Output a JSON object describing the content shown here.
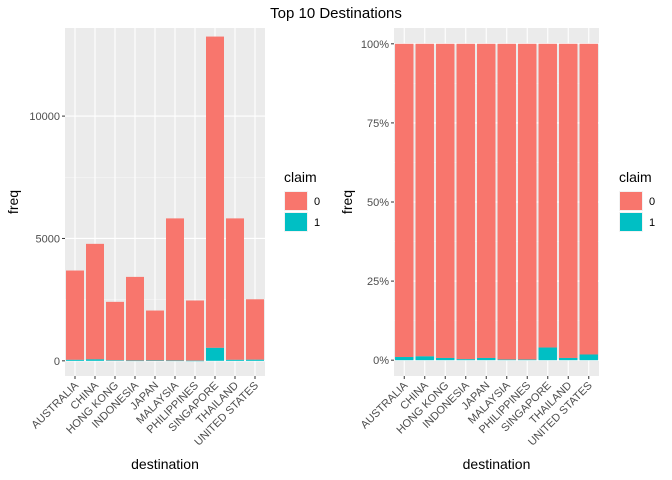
{
  "title": "Top 10 Destinations",
  "colors": {
    "0": "#F8766D",
    "1": "#00BFC4",
    "panel": "#EBEBEB",
    "grid_major": "#FFFFFF",
    "grid_minor": "#F5F5F5"
  },
  "chart_data": [
    {
      "type": "bar",
      "stacked": true,
      "categories": [
        "AUSTRALIA",
        "CHINA",
        "HONG KONG",
        "INDONESIA",
        "JAPAN",
        "MALAYSIA",
        "PHILIPPINES",
        "SINGAPORE",
        "THAILAND",
        "UNITED STATES"
      ],
      "series": [
        {
          "name": "0",
          "values": [
            3650,
            4720,
            2390,
            3420,
            2040,
            5810,
            2460,
            12720,
            5780,
            2470
          ]
        },
        {
          "name": "1",
          "values": [
            40,
            60,
            20,
            10,
            15,
            10,
            5,
            530,
            40,
            45
          ]
        }
      ],
      "xlabel": "destination",
      "ylabel": "freq",
      "ylim": [
        -620,
        13600
      ],
      "yticks": [
        0,
        5000,
        10000
      ],
      "ytick_labels": [
        "0",
        "5000",
        "10000"
      ],
      "grid": true,
      "legend": {
        "title": "claim",
        "position": "right",
        "entries": [
          "0",
          "1"
        ]
      }
    },
    {
      "type": "bar",
      "stacked": true,
      "normalized": true,
      "categories": [
        "AUSTRALIA",
        "CHINA",
        "HONG KONG",
        "INDONESIA",
        "JAPAN",
        "MALAYSIA",
        "PHILIPPINES",
        "SINGAPORE",
        "THAILAND",
        "UNITED STATES"
      ],
      "series": [
        {
          "name": "0",
          "values": [
            0.99,
            0.988,
            0.993,
            0.997,
            0.993,
            0.998,
            0.998,
            0.96,
            0.993,
            0.982
          ]
        },
        {
          "name": "1",
          "values": [
            0.01,
            0.012,
            0.007,
            0.003,
            0.007,
            0.002,
            0.002,
            0.04,
            0.007,
            0.018
          ]
        }
      ],
      "xlabel": "destination",
      "ylabel": "freq",
      "ylim": [
        -0.05,
        1.05
      ],
      "yticks": [
        0,
        0.25,
        0.5,
        0.75,
        1.0
      ],
      "ytick_labels": [
        "0%",
        "25%",
        "50%",
        "75%",
        "100%"
      ],
      "grid": true,
      "legend": {
        "title": "claim",
        "position": "right",
        "entries": [
          "0",
          "1"
        ]
      }
    }
  ]
}
